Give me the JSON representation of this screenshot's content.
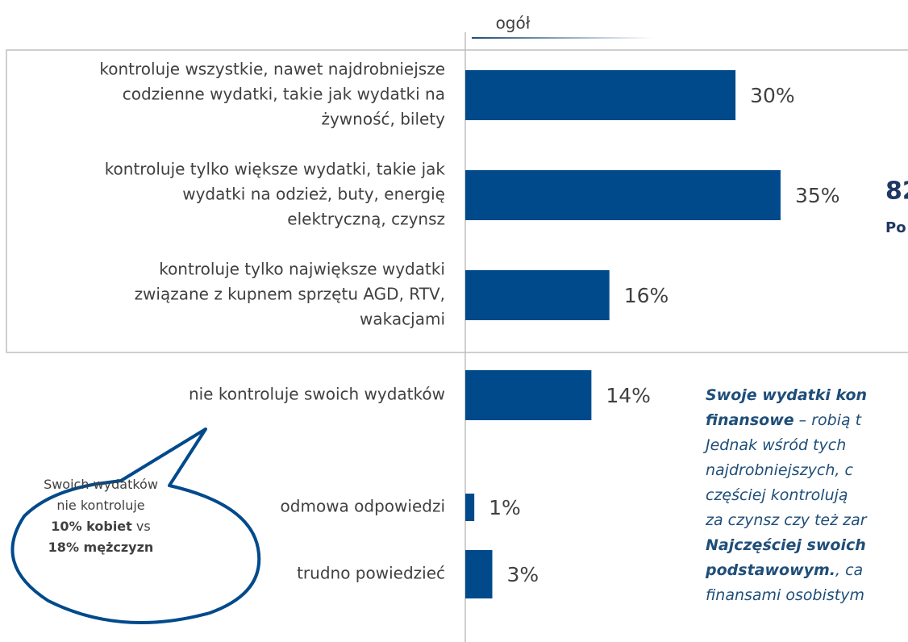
{
  "chart_data": {
    "type": "bar",
    "column_header": "ogół",
    "categories": [
      [
        "kontroluje wszystkie, nawet najdrobniejsze",
        "codzienne wydatki, takie jak wydatki na",
        "żywność, bilety"
      ],
      [
        "kontroluje tylko większe wydatki, takie jak",
        "wydatki na odzież, buty, energię",
        "elektryczną, czynsz"
      ],
      [
        "kontroluje tylko największe wydatki",
        "związane z kupnem sprzętu AGD, RTV,",
        "wakacjami"
      ],
      [
        "nie kontroluje swoich wydatków"
      ],
      [
        "odmowa odpowiedzi"
      ],
      [
        "trudno powiedzieć"
      ]
    ],
    "values": [
      30,
      35,
      16,
      14,
      1,
      3
    ],
    "value_labels": [
      "30%",
      "35%",
      "16%",
      "14%",
      "1%",
      "3%"
    ],
    "color": "#004a8c",
    "side_note": {
      "big": "82",
      "small": "Po"
    },
    "paragraph": [
      [
        {
          "text": "Swoje wydatki kon",
          "bold": true
        }
      ],
      [
        {
          "text": "finansowe",
          "bold": true
        },
        {
          "text": " – robią t",
          "bold": false
        }
      ],
      [
        {
          "text": "Jednak wśród tych",
          "bold": false
        }
      ],
      [
        {
          "text": "najdrobniejszych, c",
          "bold": false
        }
      ],
      [
        {
          "text": "częściej kontrolują",
          "bold": false
        }
      ],
      [
        {
          "text": "za czynsz czy też zar",
          "bold": false
        }
      ],
      [
        {
          "text": "Najczęściej swoich",
          "bold": true
        }
      ],
      [
        {
          "text": "podstawowym.",
          "bold": true
        },
        {
          "text": ", ca",
          "bold": false
        }
      ],
      [
        {
          "text": "finansami osobistym",
          "bold": false
        }
      ]
    ],
    "bubble": [
      [
        {
          "text": "Swoich wydatków",
          "bold": false
        }
      ],
      [
        {
          "text": "nie kontroluje",
          "bold": false
        }
      ],
      [
        {
          "text": "10%  kobiet",
          "bold": true
        },
        {
          "text": " vs",
          "bold": false
        }
      ],
      [
        {
          "text": "18% mężczyzn",
          "bold": true
        }
      ]
    ]
  }
}
